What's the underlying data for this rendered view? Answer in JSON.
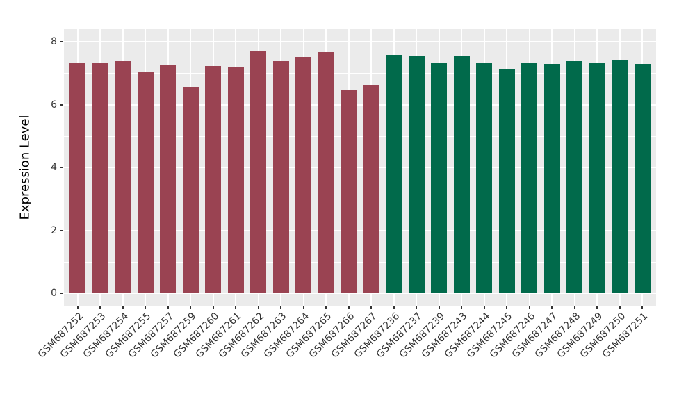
{
  "figure": {
    "background": "#FFFFFF",
    "panel_background": "#EBEBEB",
    "grid_color": "#FFFFFF",
    "tick_color": "#333333",
    "axis_text_color": "#333333",
    "axis_title_color": "#000000"
  },
  "chart_data": {
    "type": "bar",
    "title": "",
    "xlabel": "",
    "ylabel": "Expression Level",
    "ylim": [
      0,
      8
    ],
    "yticks": [
      0,
      2,
      4,
      6,
      8
    ],
    "yticks_minor": [
      1,
      3,
      5,
      7
    ],
    "grid": "on",
    "legend": "none",
    "categories": [
      "GSM687252",
      "GSM687253",
      "GSM687254",
      "GSM687255",
      "GSM687257",
      "GSM687259",
      "GSM687260",
      "GSM687261",
      "GSM687262",
      "GSM687263",
      "GSM687264",
      "GSM687265",
      "GSM687266",
      "GSM687267",
      "GSM687236",
      "GSM687237",
      "GSM687239",
      "GSM687243",
      "GSM687244",
      "GSM687245",
      "GSM687246",
      "GSM687247",
      "GSM687248",
      "GSM687249",
      "GSM687250",
      "GSM687251"
    ],
    "values": [
      7.32,
      7.32,
      7.38,
      7.02,
      7.28,
      6.57,
      7.22,
      7.19,
      7.7,
      7.38,
      7.51,
      7.66,
      6.46,
      6.63,
      7.58,
      7.53,
      7.32,
      7.53,
      7.32,
      7.14,
      7.34,
      7.29,
      7.38,
      7.34,
      7.43,
      7.29
    ],
    "bar_colors": [
      "#9A4352",
      "#9A4352",
      "#9A4352",
      "#9A4352",
      "#9A4352",
      "#9A4352",
      "#9A4352",
      "#9A4352",
      "#9A4352",
      "#9A4352",
      "#9A4352",
      "#9A4352",
      "#9A4352",
      "#9A4352",
      "#016A4B",
      "#016A4B",
      "#016A4B",
      "#016A4B",
      "#016A4B",
      "#016A4B",
      "#016A4B",
      "#016A4B",
      "#016A4B",
      "#016A4B",
      "#016A4B",
      "#016A4B"
    ],
    "color_groups": {
      "maroon": "#9A4352",
      "green": "#016A4B"
    }
  }
}
